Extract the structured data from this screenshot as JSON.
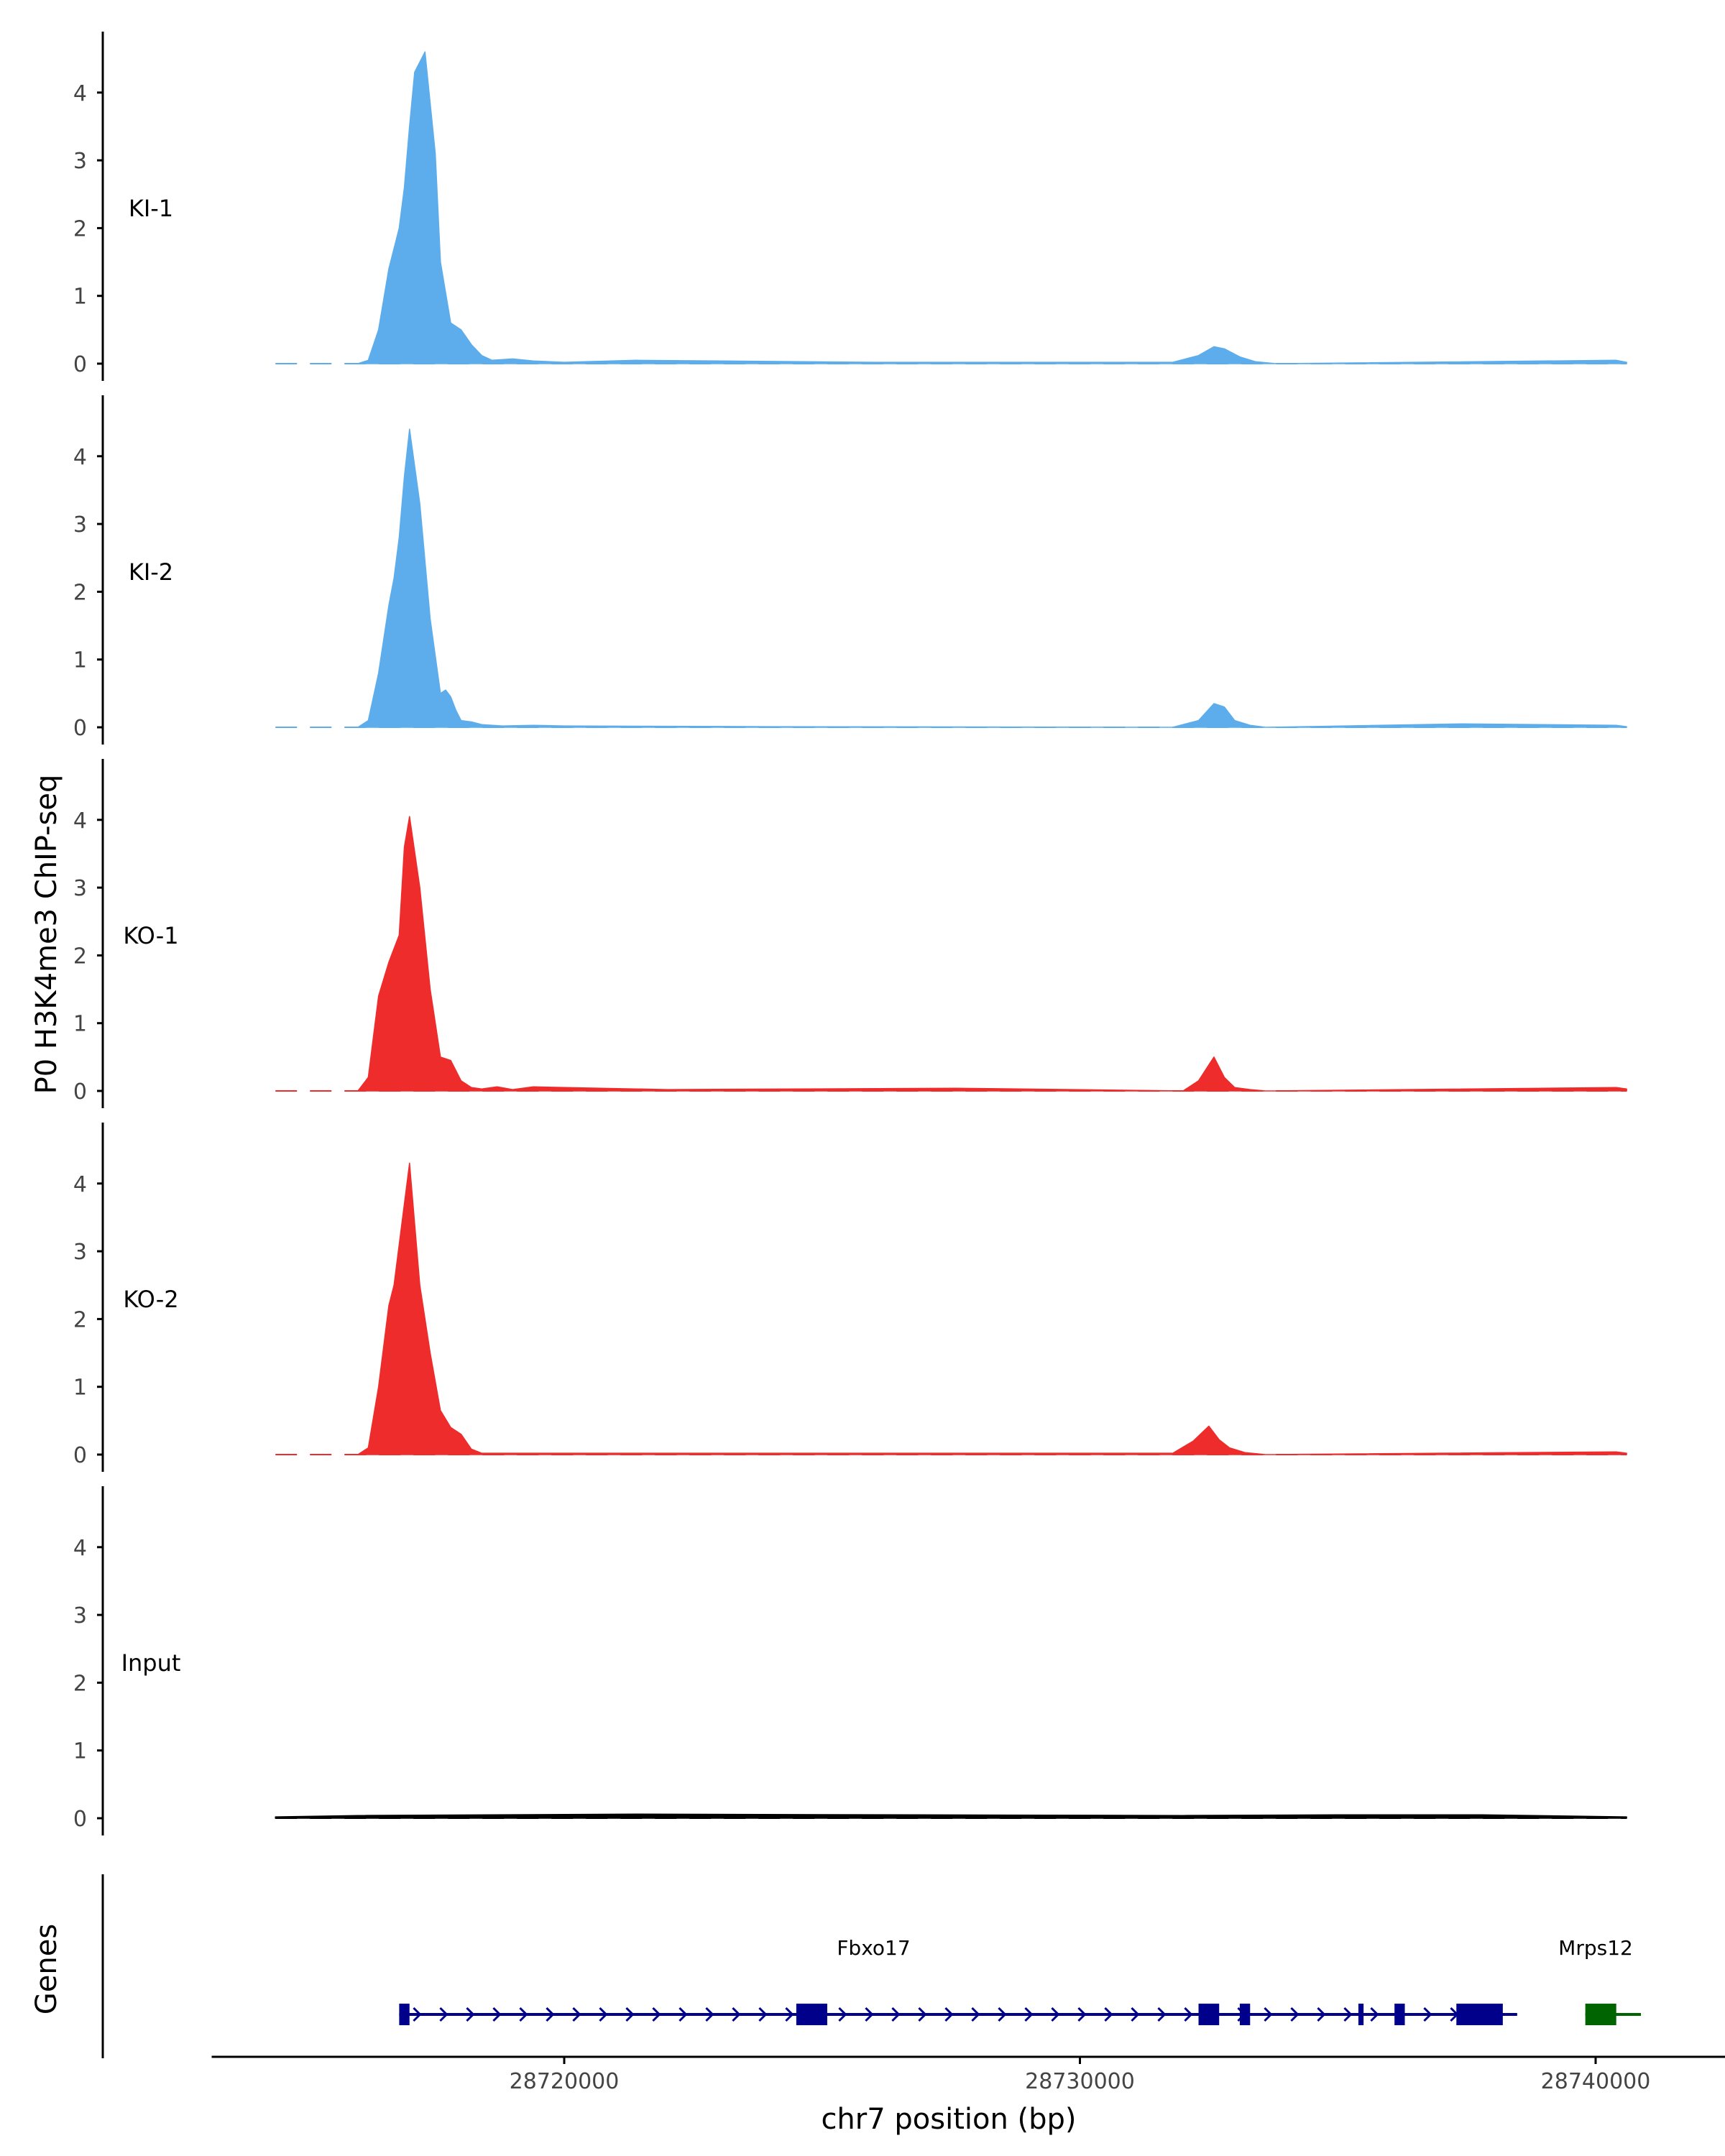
{
  "chart_data": {
    "type": "area",
    "title": "",
    "ylabel": "P0 H3K4me3 ChIP-seq",
    "xlabel": "chr7 position (bp)",
    "ylim": [
      0,
      4.8
    ],
    "yticks": [
      0,
      1,
      2,
      3,
      4
    ],
    "xlim": [
      28714000,
      28742000
    ],
    "xticks": [
      28720000,
      28730000,
      28740000
    ],
    "xtick_labels": [
      "28720000",
      "28730000",
      "28740000"
    ],
    "colors": {
      "ki": "#5DADEC",
      "ko": "#EE2C2C",
      "input": "#000000",
      "fbxo17": "#00008B",
      "mrps12": "#006400"
    },
    "series": [
      {
        "name": "KI-1",
        "color": "#5DADEC",
        "x": [
          28716000,
          28716200,
          28716400,
          28716600,
          28716800,
          28716900,
          28717000,
          28717100,
          28717300,
          28717500,
          28717600,
          28717800,
          28718000,
          28718200,
          28718400,
          28718600,
          28719000,
          28719400,
          28720000,
          28721400,
          28726000,
          28731800,
          28732300,
          28732600,
          28732800,
          28733100,
          28733400,
          28733800,
          28740400,
          28740600
        ],
        "values": [
          0,
          0.05,
          0.5,
          1.4,
          2.0,
          2.6,
          3.5,
          4.3,
          4.6,
          3.1,
          1.5,
          0.6,
          0.5,
          0.28,
          0.12,
          0.05,
          0.07,
          0.04,
          0.02,
          0.05,
          0.02,
          0.02,
          0.12,
          0.25,
          0.22,
          0.1,
          0.03,
          0.0,
          0.05,
          0.02
        ]
      },
      {
        "name": "KI-2",
        "color": "#5DADEC",
        "x": [
          28716000,
          28716200,
          28716400,
          28716600,
          28716700,
          28716800,
          28716900,
          28717000,
          28717200,
          28717400,
          28717600,
          28717700,
          28717800,
          28717900,
          28718000,
          28718200,
          28718400,
          28718800,
          28719400,
          28720000,
          28724000,
          28731800,
          28732300,
          28732600,
          28732800,
          28733000,
          28733300,
          28733600,
          28737400,
          28740400,
          28740600
        ],
        "values": [
          0,
          0.1,
          0.8,
          1.8,
          2.2,
          2.8,
          3.7,
          4.4,
          3.3,
          1.6,
          0.5,
          0.55,
          0.45,
          0.25,
          0.1,
          0.08,
          0.04,
          0.02,
          0.03,
          0.02,
          0.01,
          0.0,
          0.1,
          0.35,
          0.3,
          0.1,
          0.03,
          0.0,
          0.05,
          0.03,
          0.01
        ]
      },
      {
        "name": "KO-1",
        "color": "#EE2C2C",
        "x": [
          28716000,
          28716200,
          28716400,
          28716600,
          28716800,
          28716900,
          28717000,
          28717200,
          28717400,
          28717600,
          28717800,
          28718000,
          28718200,
          28718400,
          28718700,
          28719000,
          28719400,
          28722000,
          28727600,
          28732000,
          28732300,
          28732600,
          28732800,
          28733000,
          28733300,
          28733600,
          28740400,
          28740600
        ],
        "values": [
          0,
          0.2,
          1.4,
          1.9,
          2.3,
          3.6,
          4.05,
          3.0,
          1.5,
          0.5,
          0.45,
          0.15,
          0.05,
          0.03,
          0.06,
          0.02,
          0.06,
          0.02,
          0.04,
          0.0,
          0.15,
          0.5,
          0.2,
          0.05,
          0.02,
          0.0,
          0.05,
          0.03
        ]
      },
      {
        "name": "KO-2",
        "color": "#EE2C2C",
        "x": [
          28716000,
          28716200,
          28716400,
          28716600,
          28716700,
          28716900,
          28717000,
          28717200,
          28717400,
          28717600,
          28717800,
          28718000,
          28718200,
          28718400,
          28719000,
          28719400,
          28722000,
          28726000,
          28731800,
          28732200,
          28732500,
          28732700,
          28732900,
          28733200,
          28733600,
          28740400,
          28740600
        ],
        "values": [
          0,
          0.1,
          1.0,
          2.2,
          2.5,
          3.7,
          4.3,
          2.5,
          1.5,
          0.65,
          0.4,
          0.3,
          0.08,
          0.02,
          0.02,
          0.02,
          0.02,
          0.02,
          0.02,
          0.2,
          0.42,
          0.22,
          0.1,
          0.03,
          0.0,
          0.04,
          0.02
        ]
      },
      {
        "name": "Input",
        "color": "#000000",
        "x": [
          28714400,
          28716000,
          28721400,
          28726800,
          28732000,
          28735000,
          28737800,
          28740600
        ],
        "values": [
          0.02,
          0.04,
          0.06,
          0.05,
          0.04,
          0.05,
          0.05,
          0.02
        ]
      }
    ],
    "genes_panel": {
      "ylabel": "Genes",
      "genes": [
        {
          "name": "Fbxo17",
          "color": "#00008B",
          "strand": "+",
          "start": 28716800,
          "end": 28738200,
          "exons": [
            [
              28716800,
              28717000
            ],
            [
              28724500,
              28725100
            ],
            [
              28732300,
              28732700
            ],
            [
              28733100,
              28733300
            ],
            [
              28735400,
              28735500
            ],
            [
              28736100,
              28736300
            ],
            [
              28737300,
              28738200
            ]
          ]
        },
        {
          "name": "Mrps12",
          "color": "#006400",
          "strand": "+",
          "start": 28739800,
          "end": 28740600,
          "exons": [
            [
              28739800,
              28740400
            ]
          ]
        }
      ]
    }
  }
}
